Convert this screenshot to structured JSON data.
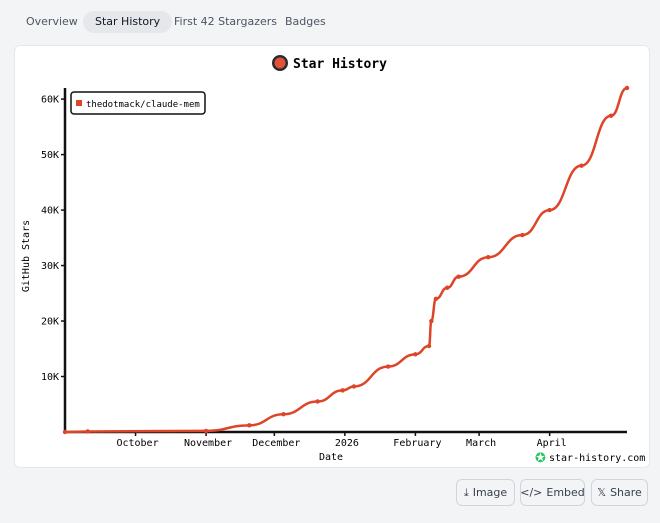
{
  "tabs": [
    {
      "label": "Overview",
      "active": false
    },
    {
      "label": "Star History",
      "active": true
    },
    {
      "label": "First 42 Stargazers",
      "active": false
    },
    {
      "label": "Badges",
      "active": false
    }
  ],
  "chart_data": {
    "type": "line",
    "title": "Star History",
    "xlabel": "Date",
    "ylabel": "GitHub Stars",
    "legend": "top-left",
    "watermark": "star-history.com",
    "x_ticks": [
      "October",
      "November",
      "December",
      "2026",
      "February",
      "March",
      "April"
    ],
    "y_ticks": [
      "10K",
      "20K",
      "30K",
      "40K",
      "50K",
      "60K"
    ],
    "ylim": [
      0,
      62000
    ],
    "series": [
      {
        "name": "thedotmack/claude-mem",
        "color": "#dd4528",
        "points": [
          {
            "x": "2025-08-31",
            "y": 0
          },
          {
            "x": "2025-09-10",
            "y": 100
          },
          {
            "x": "2025-11-01",
            "y": 200
          },
          {
            "x": "2025-11-20",
            "y": 1200
          },
          {
            "x": "2025-12-05",
            "y": 3200
          },
          {
            "x": "2025-12-20",
            "y": 5500
          },
          {
            "x": "2025-12-31",
            "y": 7500
          },
          {
            "x": "2026-01-05",
            "y": 8200
          },
          {
            "x": "2026-01-20",
            "y": 11800
          },
          {
            "x": "2026-02-01",
            "y": 14000
          },
          {
            "x": "2026-02-07",
            "y": 15500
          },
          {
            "x": "2026-02-08",
            "y": 20000
          },
          {
            "x": "2026-02-10",
            "y": 24000
          },
          {
            "x": "2026-02-15",
            "y": 26000
          },
          {
            "x": "2026-02-20",
            "y": 28000
          },
          {
            "x": "2026-03-05",
            "y": 31500
          },
          {
            "x": "2026-03-20",
            "y": 35500
          },
          {
            "x": "2026-04-01",
            "y": 40000
          },
          {
            "x": "2026-04-15",
            "y": 48000
          },
          {
            "x": "2026-04-28",
            "y": 57000
          },
          {
            "x": "2026-05-05",
            "y": 62000
          }
        ]
      }
    ]
  },
  "buttons": {
    "image": "Image",
    "embed": "Embed",
    "share": "Share"
  }
}
